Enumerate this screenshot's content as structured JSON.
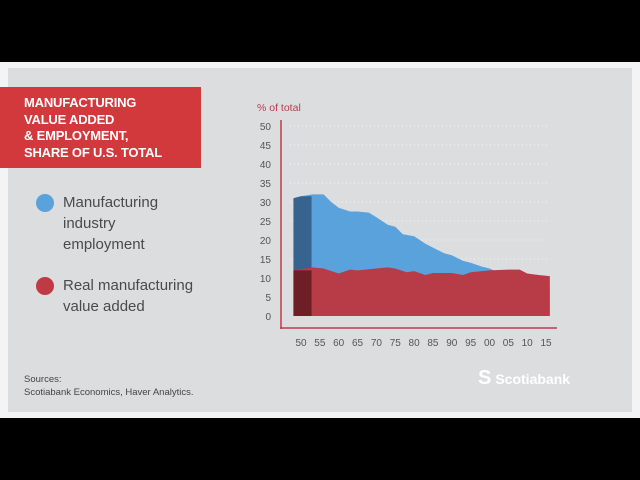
{
  "title": "MANUFACTURING\nVALUE ADDED\n& EMPLOYMENT,\nSHARE OF U.S. TOTAL",
  "legend": [
    {
      "label": "Manufacturing\nindustry\nemployment",
      "color": "#5aa2dc"
    },
    {
      "label": "Real manufacturing\nvalue added",
      "color": "#c03a44"
    }
  ],
  "sources": "Sources:\nScotiabank Economics, Haver Analytics.",
  "logo": {
    "text": "Scotiabank",
    "mark": "S"
  },
  "colors": {
    "axis": "#c23a4a",
    "blue": "#5aa2dc",
    "blue_dark": "#36648f",
    "red": "#b83c48",
    "red_dark": "#6e1f26"
  },
  "chart_data": {
    "type": "area",
    "title": "Manufacturing value added & employment, share of U.S. total",
    "ylabel": "% of total",
    "ylim": [
      0,
      50
    ],
    "yticks": [
      "0",
      "5",
      "10",
      "15",
      "20",
      "25",
      "30",
      "35",
      "40",
      "45",
      "50"
    ],
    "xticks": [
      "50",
      "55",
      "60",
      "65",
      "70",
      "75",
      "80",
      "85",
      "90",
      "95",
      "00",
      "05",
      "10",
      "15"
    ],
    "xlim": [
      1948,
      2016
    ],
    "grid": true,
    "series": [
      {
        "name": "Manufacturing industry employment",
        "x": [
          1948,
          1950,
          1953,
          1956,
          1958,
          1960,
          1963,
          1965,
          1968,
          1970,
          1973,
          1975,
          1977,
          1980,
          1983,
          1985,
          1988,
          1990,
          1993,
          1995,
          1998,
          2000,
          2003,
          2005,
          2008,
          2010,
          2013,
          2016
        ],
        "y": [
          31,
          31.5,
          32,
          32,
          30,
          28.5,
          27.5,
          27.5,
          27.2,
          26,
          24,
          23.5,
          21.5,
          21,
          19,
          18,
          16.5,
          16,
          14.5,
          14,
          13,
          12.5,
          11.2,
          10.5,
          9.5,
          8.5,
          8.2,
          7.8
        ]
      },
      {
        "name": "Real manufacturing value added",
        "x": [
          1948,
          1953,
          1956,
          1960,
          1963,
          1965,
          1970,
          1973,
          1975,
          1978,
          1980,
          1983,
          1985,
          1990,
          1993,
          1995,
          2000,
          2005,
          2008,
          2010,
          2013,
          2016
        ],
        "y": [
          12,
          12.8,
          12.5,
          11.2,
          12.2,
          12,
          12.5,
          12.8,
          12.5,
          11.5,
          11.8,
          10.8,
          11.3,
          11.3,
          10.8,
          11.5,
          12,
          12.2,
          12.2,
          11.2,
          10.8,
          10.5
        ]
      }
    ]
  }
}
